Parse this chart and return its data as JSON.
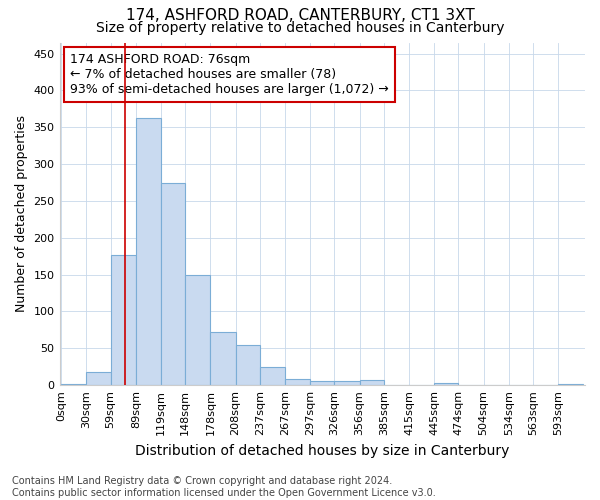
{
  "title1": "174, ASHFORD ROAD, CANTERBURY, CT1 3XT",
  "title2": "Size of property relative to detached houses in Canterbury",
  "xlabel": "Distribution of detached houses by size in Canterbury",
  "ylabel": "Number of detached properties",
  "footer1": "Contains HM Land Registry data © Crown copyright and database right 2024.",
  "footer2": "Contains public sector information licensed under the Open Government Licence v3.0.",
  "annotation_line1": "174 ASHFORD ROAD: 76sqm",
  "annotation_line2": "← 7% of detached houses are smaller (78)",
  "annotation_line3": "93% of semi-detached houses are larger (1,072) →",
  "bar_labels": [
    "0sqm",
    "30sqm",
    "59sqm",
    "89sqm",
    "119sqm",
    "148sqm",
    "178sqm",
    "208sqm",
    "237sqm",
    "267sqm",
    "297sqm",
    "326sqm",
    "356sqm",
    "385sqm",
    "415sqm",
    "445sqm",
    "474sqm",
    "504sqm",
    "534sqm",
    "563sqm",
    "593sqm"
  ],
  "bar_values": [
    2,
    18,
    176,
    363,
    275,
    150,
    72,
    55,
    25,
    9,
    6,
    6,
    7,
    0,
    0,
    3,
    0,
    0,
    0,
    0,
    2
  ],
  "bar_edges": [
    0,
    30,
    59,
    89,
    119,
    148,
    178,
    208,
    237,
    267,
    297,
    326,
    356,
    385,
    415,
    445,
    474,
    504,
    534,
    563,
    593
  ],
  "bar_widths": [
    30,
    29,
    30,
    30,
    29,
    30,
    30,
    29,
    30,
    30,
    29,
    30,
    29,
    30,
    30,
    29,
    30,
    30,
    29,
    30,
    30
  ],
  "bar_color": "#c9daf0",
  "bar_edge_color": "#7badd6",
  "ref_line_color": "#cc0000",
  "ref_line_x": 76,
  "ylim": [
    0,
    465
  ],
  "yticks": [
    0,
    50,
    100,
    150,
    200,
    250,
    300,
    350,
    400,
    450
  ],
  "annotation_box_color": "#cc0000",
  "bg_color": "#ffffff",
  "grid_color": "#c8d8ea",
  "title1_fontsize": 11,
  "title2_fontsize": 10,
  "xlabel_fontsize": 10,
  "ylabel_fontsize": 9,
  "tick_fontsize": 8,
  "annotation_fontsize": 9,
  "footer_fontsize": 7
}
